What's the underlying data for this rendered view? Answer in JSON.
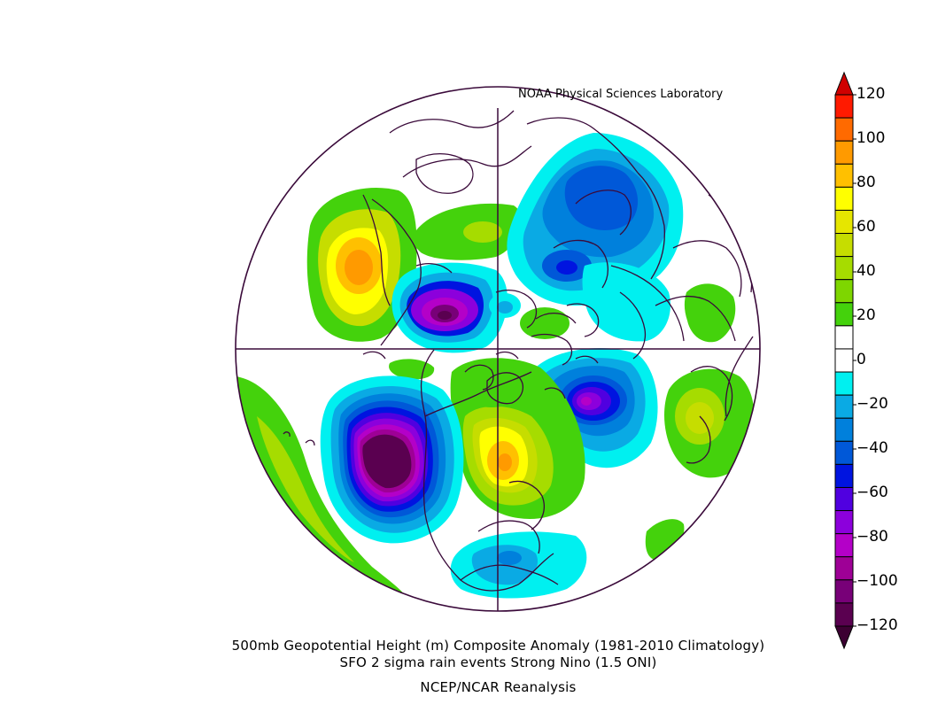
{
  "header": {
    "credit": "NOAA Physical Sciences Laboratory"
  },
  "caption": {
    "line1": "500mb Geopotential Height (m) Composite Anomaly (1981-2010 Climatology)",
    "line2": "SFO 2 sigma rain events Strong Nino (1.5 ONI)",
    "line3": "NCEP/NCAR Reanalysis"
  },
  "colorbar": {
    "labels": [
      "120",
      "100",
      "80",
      "60",
      "40",
      "20",
      "0",
      "-20",
      "-40",
      "-60",
      "-80",
      "-100",
      "-120"
    ],
    "bins": [
      {
        "range": "100..120",
        "color": "#ff1a00"
      },
      {
        "range": "90..100",
        "color": "#ff6a00"
      },
      {
        "range": "80..90",
        "color": "#ff9a00"
      },
      {
        "range": "70..80",
        "color": "#ffc000"
      },
      {
        "range": "60..70",
        "color": "#ffff00"
      },
      {
        "range": "50..60",
        "color": "#e6e600"
      },
      {
        "range": "40..50",
        "color": "#c6dd00"
      },
      {
        "range": "30..40",
        "color": "#a6dc00"
      },
      {
        "range": "20..30",
        "color": "#7ed600"
      },
      {
        "range": "10..20",
        "color": "#44d20c"
      },
      {
        "range": "0..10",
        "color": "#ffffff"
      },
      {
        "range": "-10..0",
        "color": "#ffffff"
      },
      {
        "range": "-20..-10",
        "color": "#00f0f0"
      },
      {
        "range": "-30..-20",
        "color": "#0aaae4"
      },
      {
        "range": "-40..-30",
        "color": "#0080dc"
      },
      {
        "range": "-50..-40",
        "color": "#0058d8"
      },
      {
        "range": "-60..-50",
        "color": "#0014e0"
      },
      {
        "range": "-70..-60",
        "color": "#5000e0"
      },
      {
        "range": "-80..-70",
        "color": "#8c00dc"
      },
      {
        "range": "-90..-80",
        "color": "#b400c8"
      },
      {
        "range": "-100..-90",
        "color": "#9e0096"
      },
      {
        "range": "-110..-100",
        "color": "#780078"
      },
      {
        "range": "-120..-110",
        "color": "#5a0050"
      }
    ]
  },
  "map": {
    "projection": "north-polar-stereographic",
    "anomalies": [
      {
        "region": "eastern-north-pacific",
        "center_value": -130
      },
      {
        "region": "western-canada-alaska-coast",
        "center_value": 80
      },
      {
        "region": "eastern-north-america",
        "center_value": 70
      },
      {
        "region": "southeast-us-gulf",
        "center_value": -35
      },
      {
        "region": "north-atlantic",
        "center_value": -90
      },
      {
        "region": "western-russia",
        "center_value": 40
      },
      {
        "region": "east-siberia",
        "center_value": -90
      },
      {
        "region": "north-siberia",
        "center_value": -50
      }
    ]
  }
}
